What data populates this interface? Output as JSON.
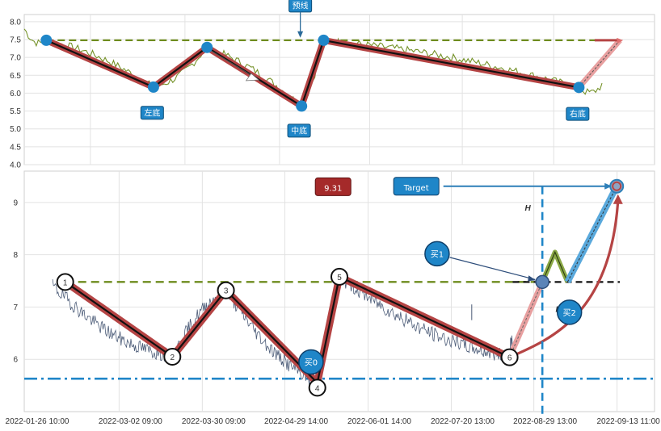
{
  "chart_data": [
    {
      "type": "line",
      "panel": "top",
      "ylim": [
        4.0,
        8.2
      ],
      "yticks": [
        "8.0",
        "7.5",
        "7.0",
        "6.5",
        "6.0",
        "5.5",
        "5.0",
        "4.5",
        "4.0"
      ],
      "neckline": 7.48,
      "pattern_points": [
        {
          "x": 0.035,
          "y": 7.48
        },
        {
          "x": 0.205,
          "y": 6.17
        },
        {
          "x": 0.29,
          "y": 7.28
        },
        {
          "x": 0.44,
          "y": 5.64
        },
        {
          "x": 0.475,
          "y": 7.48
        },
        {
          "x": 0.88,
          "y": 6.16
        }
      ],
      "annotations": [
        {
          "text": "预线",
          "at": {
            "x": 0.438,
            "y": 8.45
          }
        },
        {
          "text": "左底",
          "at": {
            "x": 0.203,
            "y": 5.45
          }
        },
        {
          "text": "中底",
          "at": {
            "x": 0.436,
            "y": 4.95
          }
        },
        {
          "text": "右底",
          "at": {
            "x": 0.878,
            "y": 5.42
          }
        }
      ],
      "forecast": [
        {
          "x": 0.88,
          "y": 6.16
        },
        {
          "x": 0.945,
          "y": 7.48
        }
      ]
    },
    {
      "type": "line",
      "panel": "bottom",
      "ylim": [
        5.0,
        9.6
      ],
      "yticks": [
        "9",
        "8",
        "7",
        "6"
      ],
      "xticks": [
        "2022-01-26 10:00",
        "2022-03-02 09:00",
        "2022-03-30 09:00",
        "2022-04-29 14:00",
        "2022-06-01 14:00",
        "2022-07-20 13:00",
        "2022-08-29 13:00",
        "2022-09-13 11:00"
      ],
      "neckline": 7.48,
      "support": 5.63,
      "pattern_points": [
        {
          "label": "1",
          "x": 0.065,
          "y": 7.48
        },
        {
          "label": "2",
          "x": 0.235,
          "y": 6.05
        },
        {
          "label": "3",
          "x": 0.32,
          "y": 7.32
        },
        {
          "label": "4",
          "x": 0.465,
          "y": 5.55
        },
        {
          "label": "5",
          "x": 0.5,
          "y": 7.58
        },
        {
          "label": "6",
          "x": 0.77,
          "y": 6.04
        }
      ],
      "price_box": "9.31",
      "target_label": "Target",
      "target_value": 9.31,
      "height_label": "H",
      "buy_labels": [
        "买0",
        "买1",
        "买2"
      ]
    }
  ],
  "colors": {
    "pattern": "#b54444",
    "neck": "#6e8c1e",
    "support": "#1f86c8",
    "price": "#4c5c78",
    "label_bg": "#1f86c8",
    "price_box": "#a52a2a"
  }
}
